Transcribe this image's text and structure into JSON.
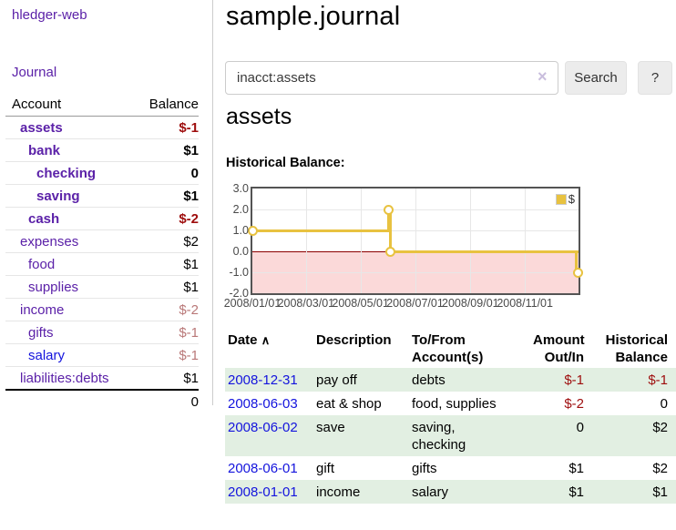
{
  "sidebar": {
    "brand": "hledger-web",
    "nav": {
      "journal": "Journal"
    },
    "columns": [
      "Account",
      "Balance"
    ],
    "accounts": [
      {
        "name": "assets",
        "indent": 1,
        "bold": true,
        "link": "purple",
        "balance": "$-1",
        "balance_style": "neg-bold"
      },
      {
        "name": "bank",
        "indent": 2,
        "bold": true,
        "link": "purple",
        "balance": "$1",
        "balance_style": "bold"
      },
      {
        "name": "checking",
        "indent": 3,
        "bold": true,
        "link": "purple",
        "balance": "0",
        "balance_style": "bold"
      },
      {
        "name": "saving",
        "indent": 3,
        "bold": true,
        "link": "purple",
        "balance": "$1",
        "balance_style": "bold"
      },
      {
        "name": "cash",
        "indent": 2,
        "bold": true,
        "link": "purple",
        "balance": "$-2",
        "balance_style": "neg-bold"
      },
      {
        "name": "expenses",
        "indent": 1,
        "bold": false,
        "link": "purple",
        "balance": "$2",
        "balance_style": "plain"
      },
      {
        "name": "food",
        "indent": 2,
        "bold": false,
        "link": "purple",
        "balance": "$1",
        "balance_style": "plain"
      },
      {
        "name": "supplies",
        "indent": 2,
        "bold": false,
        "link": "purple",
        "balance": "$1",
        "balance_style": "plain"
      },
      {
        "name": "income",
        "indent": 1,
        "bold": false,
        "link": "purple",
        "balance": "$-2",
        "balance_style": "rose"
      },
      {
        "name": "gifts",
        "indent": 2,
        "bold": false,
        "link": "purple",
        "balance": "$-1",
        "balance_style": "rose"
      },
      {
        "name": "salary",
        "indent": 2,
        "bold": false,
        "link": "blue",
        "balance": "$-1",
        "balance_style": "rose"
      },
      {
        "name": "liabilities:debts",
        "indent": 1,
        "bold": false,
        "link": "purple",
        "balance": "$1",
        "balance_style": "plain"
      }
    ],
    "total": "0"
  },
  "header": {
    "title": "sample.journal"
  },
  "search": {
    "value": "inacct:assets",
    "button": "Search",
    "help_button": "?"
  },
  "icons": {
    "sort_ascending": "∧",
    "clear_search": "×"
  },
  "account_page": {
    "heading": "assets"
  },
  "chart_data": {
    "type": "line",
    "title": "Historical Balance:",
    "xlim": [
      "2008-01-01",
      "2008-12-31"
    ],
    "ylim": [
      -2.0,
      3.0
    ],
    "yticks": [
      3.0,
      2.0,
      1.0,
      0.0,
      -1.0,
      -2.0
    ],
    "xticks": [
      "2008/01/01",
      "2008/03/01",
      "2008/05/01",
      "2008/07/01",
      "2008/09/01",
      "2008/11/01"
    ],
    "series": [
      {
        "name": "$",
        "color": "#e8c240",
        "step": true,
        "points": [
          [
            "2008-01-01",
            1.0
          ],
          [
            "2008-06-01",
            2.0
          ],
          [
            "2008-06-03",
            0.0
          ],
          [
            "2008-12-31",
            -1.0
          ]
        ]
      }
    ],
    "negative_region_color": "#fbd9d9",
    "zero_line_color": "#8b0000",
    "legend_position": "top-right",
    "grid": true
  },
  "register": {
    "columns": [
      "Date",
      "Description",
      "To/From\nAccount(s)",
      "Amount\nOut/In",
      "Historical\nBalance"
    ],
    "rows": [
      {
        "date": "2008-12-31",
        "description": "pay off",
        "accounts": "debts",
        "amount": "$-1",
        "amount_neg": true,
        "balance": "$-1",
        "balance_neg": true
      },
      {
        "date": "2008-06-03",
        "description": "eat & shop",
        "accounts": "food, supplies",
        "amount": "$-2",
        "amount_neg": true,
        "balance": "0",
        "balance_neg": false
      },
      {
        "date": "2008-06-02",
        "description": "save",
        "accounts": "saving,\nchecking",
        "amount": "0",
        "amount_neg": false,
        "balance": "$2",
        "balance_neg": false
      },
      {
        "date": "2008-06-01",
        "description": "gift",
        "accounts": "gifts",
        "amount": "$1",
        "amount_neg": false,
        "balance": "$2",
        "balance_neg": false
      },
      {
        "date": "2008-01-01",
        "description": "income",
        "accounts": "salary",
        "amount": "$1",
        "amount_neg": false,
        "balance": "$1",
        "balance_neg": false
      }
    ]
  }
}
